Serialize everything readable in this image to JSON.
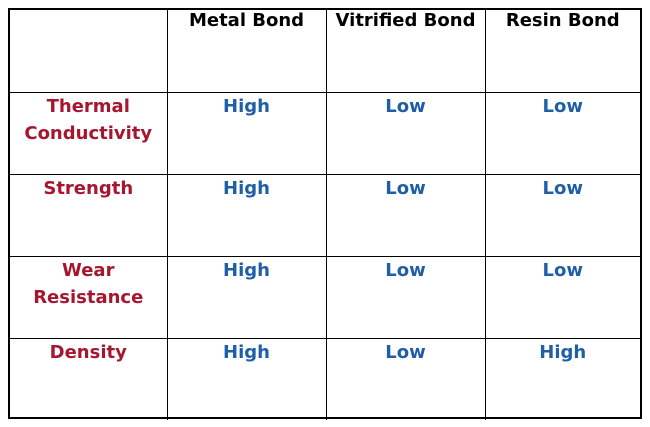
{
  "colors": {
    "row_label": "#a6172f",
    "value": "#1f5fa8",
    "header": "#000000",
    "border": "#000000"
  },
  "table": {
    "corner": "",
    "columns": [
      "Metal Bond",
      "Vitrified Bond",
      "Resin Bond"
    ],
    "rows": [
      {
        "label_lines": [
          "Thermal",
          "Conductivity"
        ],
        "values": [
          "High",
          "Low",
          "Low"
        ]
      },
      {
        "label_lines": [
          "Strength"
        ],
        "values": [
          "High",
          "Low",
          "Low"
        ]
      },
      {
        "label_lines": [
          "Wear",
          "Resistance"
        ],
        "values": [
          "High",
          "Low",
          "Low"
        ]
      },
      {
        "label_lines": [
          "Density"
        ],
        "values": [
          "High",
          "Low",
          "High"
        ]
      }
    ]
  }
}
